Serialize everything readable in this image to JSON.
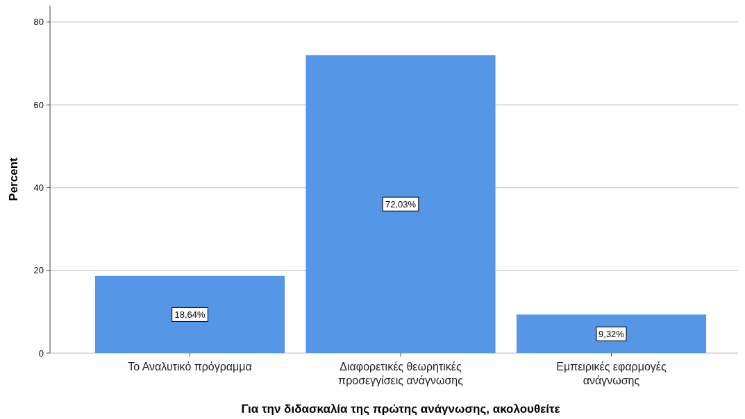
{
  "chart_data": {
    "type": "bar",
    "xlabel": "Για την διδασκαλία της πρώτης ανάγνωσης, ακολουθείτε",
    "ylabel": "Percent",
    "categories": [
      "Το Αναλυτικό πρόγραμμα",
      "Διαφορετικές θεωρητικές προσεγγίσεις ανάγνωσης",
      "Εμπειρικές εφαρμογές ανάγνωσης"
    ],
    "values": [
      18.64,
      72.03,
      9.32
    ],
    "value_labels": [
      "18,64%",
      "72,03%",
      "9,32%"
    ],
    "color": "#5596e6",
    "ylim": [
      0,
      84
    ],
    "yticks": [
      0,
      20,
      40,
      60,
      80
    ],
    "grid": "y"
  }
}
